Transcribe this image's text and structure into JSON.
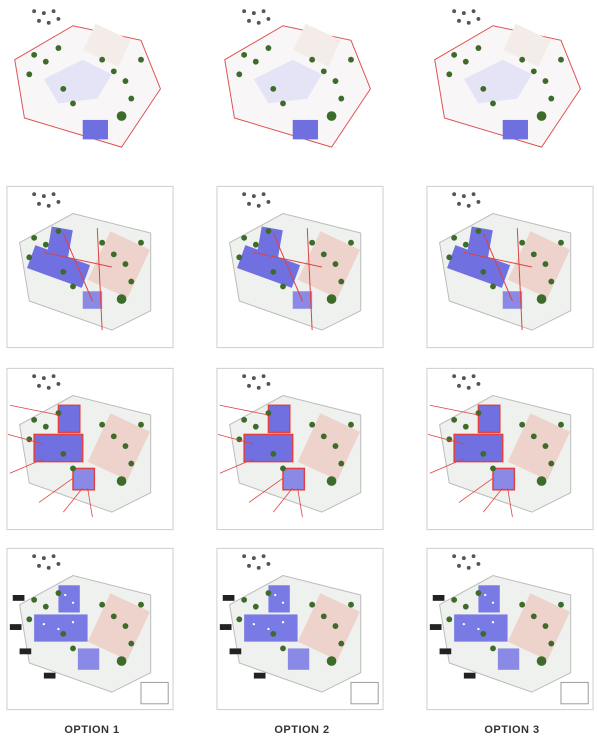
{
  "columns": [
    {
      "label": "OPTION 1"
    },
    {
      "label": "OPTION 2"
    },
    {
      "label": "OPTION 3"
    }
  ]
}
